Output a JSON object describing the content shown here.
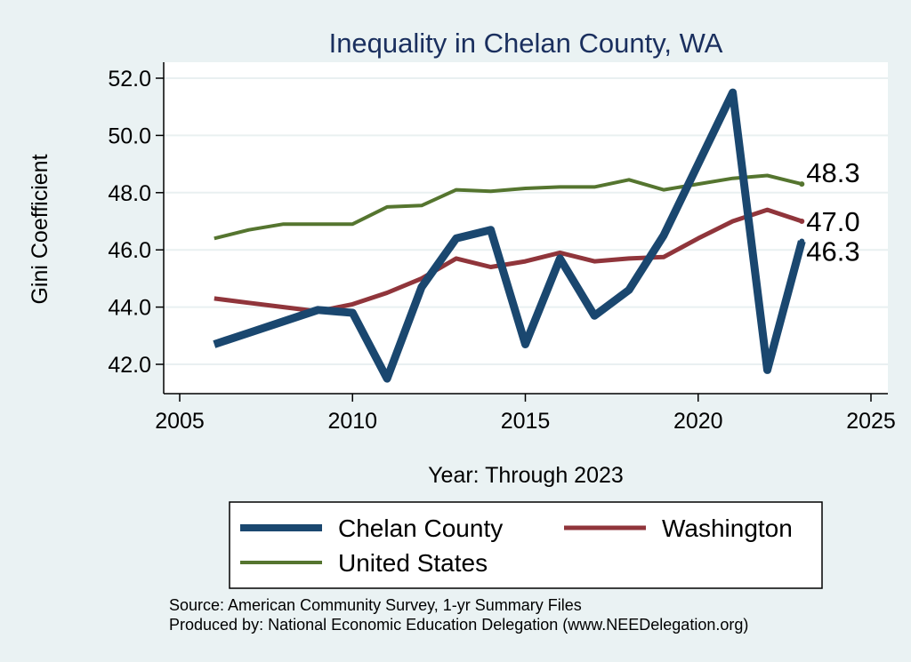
{
  "chart_data": {
    "type": "line",
    "title": "Inequality in Chelan County, WA",
    "xlabel": "Year: Through 2023",
    "ylabel": "Gini Coefficient",
    "xlim": [
      2005,
      2025
    ],
    "ylim": [
      41.0,
      52.5
    ],
    "x_ticks": [
      "2005",
      "2010",
      "2015",
      "2020",
      "2025"
    ],
    "y_ticks": [
      "42.0",
      "44.0",
      "46.0",
      "48.0",
      "50.0",
      "52.0"
    ],
    "x": [
      2006,
      2007,
      2008,
      2009,
      2010,
      2011,
      2012,
      2013,
      2014,
      2015,
      2016,
      2017,
      2018,
      2019,
      2020,
      2021,
      2022,
      2023
    ],
    "series": [
      {
        "name": "Chelan County",
        "color": "#1a476f",
        "values": [
          42.7,
          43.1,
          43.5,
          43.9,
          43.8,
          41.5,
          44.7,
          46.4,
          46.7,
          42.7,
          45.7,
          43.7,
          44.6,
          46.5,
          49.0,
          51.5,
          41.8,
          46.3
        ],
        "end_label": "46.3"
      },
      {
        "name": "Washington",
        "color": "#90353b",
        "values": [
          44.3,
          44.15,
          44.0,
          43.85,
          44.1,
          44.5,
          45.0,
          45.7,
          45.4,
          45.6,
          45.9,
          45.6,
          45.7,
          45.75,
          46.4,
          47.0,
          47.4,
          47.0
        ],
        "end_label": "47.0"
      },
      {
        "name": "United States",
        "color": "#55752f",
        "values": [
          46.4,
          46.7,
          46.9,
          46.9,
          46.9,
          47.5,
          47.55,
          48.1,
          48.05,
          48.15,
          48.2,
          48.2,
          48.45,
          48.1,
          48.3,
          48.5,
          48.6,
          48.3
        ],
        "end_label": "48.3"
      }
    ],
    "legend": {
      "position": "bottom",
      "items": [
        "Chelan County",
        "Washington",
        "United States"
      ]
    },
    "notes": [
      "Source: American Community Survey, 1-yr Summary Files",
      "Produced by: National Economic Education Delegation (www.NEEDelegation.org)"
    ]
  }
}
